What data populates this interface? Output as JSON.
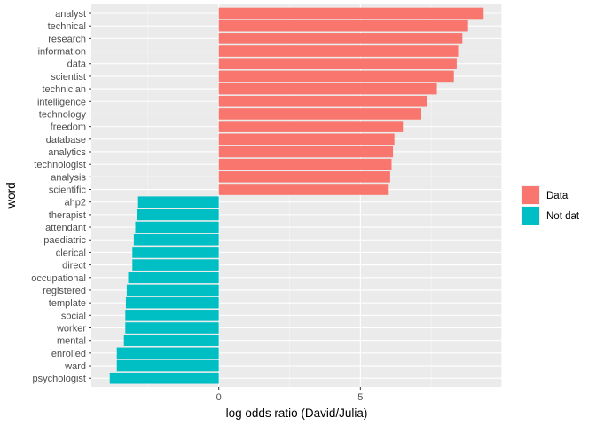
{
  "chart_data": {
    "type": "bar",
    "orientation": "horizontal",
    "xlabel": "log odds ratio (David/Julia)",
    "ylabel": "word",
    "xlim": [
      -4.5,
      10.0
    ],
    "x_ticks": [
      0,
      5
    ],
    "grid": true,
    "legend_position": "right",
    "legend": [
      {
        "label": "Data",
        "color": "#F8766D"
      },
      {
        "label": "Not dat",
        "color": "#00BFC4"
      }
    ],
    "categories": [
      "analyst",
      "technical",
      "research",
      "information",
      "data",
      "scientist",
      "technician",
      "intelligence",
      "technology",
      "freedom",
      "database",
      "analytics",
      "technologist",
      "analysis",
      "scientific",
      "ahp2",
      "therapist",
      "attendant",
      "paediatric",
      "clerical",
      "direct",
      "occupational",
      "registered",
      "template",
      "social",
      "worker",
      "mental",
      "enrolled",
      "ward",
      "psychologist"
    ],
    "values": [
      9.35,
      8.8,
      8.6,
      8.45,
      8.4,
      8.3,
      7.7,
      7.35,
      7.15,
      6.5,
      6.2,
      6.15,
      6.1,
      6.05,
      6.0,
      -2.85,
      -2.9,
      -2.95,
      -3.0,
      -3.05,
      -3.05,
      -3.2,
      -3.25,
      -3.28,
      -3.3,
      -3.3,
      -3.35,
      -3.6,
      -3.6,
      -3.85
    ],
    "groups": [
      "Data",
      "Data",
      "Data",
      "Data",
      "Data",
      "Data",
      "Data",
      "Data",
      "Data",
      "Data",
      "Data",
      "Data",
      "Data",
      "Data",
      "Data",
      "Not dat",
      "Not dat",
      "Not dat",
      "Not dat",
      "Not dat",
      "Not dat",
      "Not dat",
      "Not dat",
      "Not dat",
      "Not dat",
      "Not dat",
      "Not dat",
      "Not dat",
      "Not dat",
      "Not dat"
    ]
  }
}
